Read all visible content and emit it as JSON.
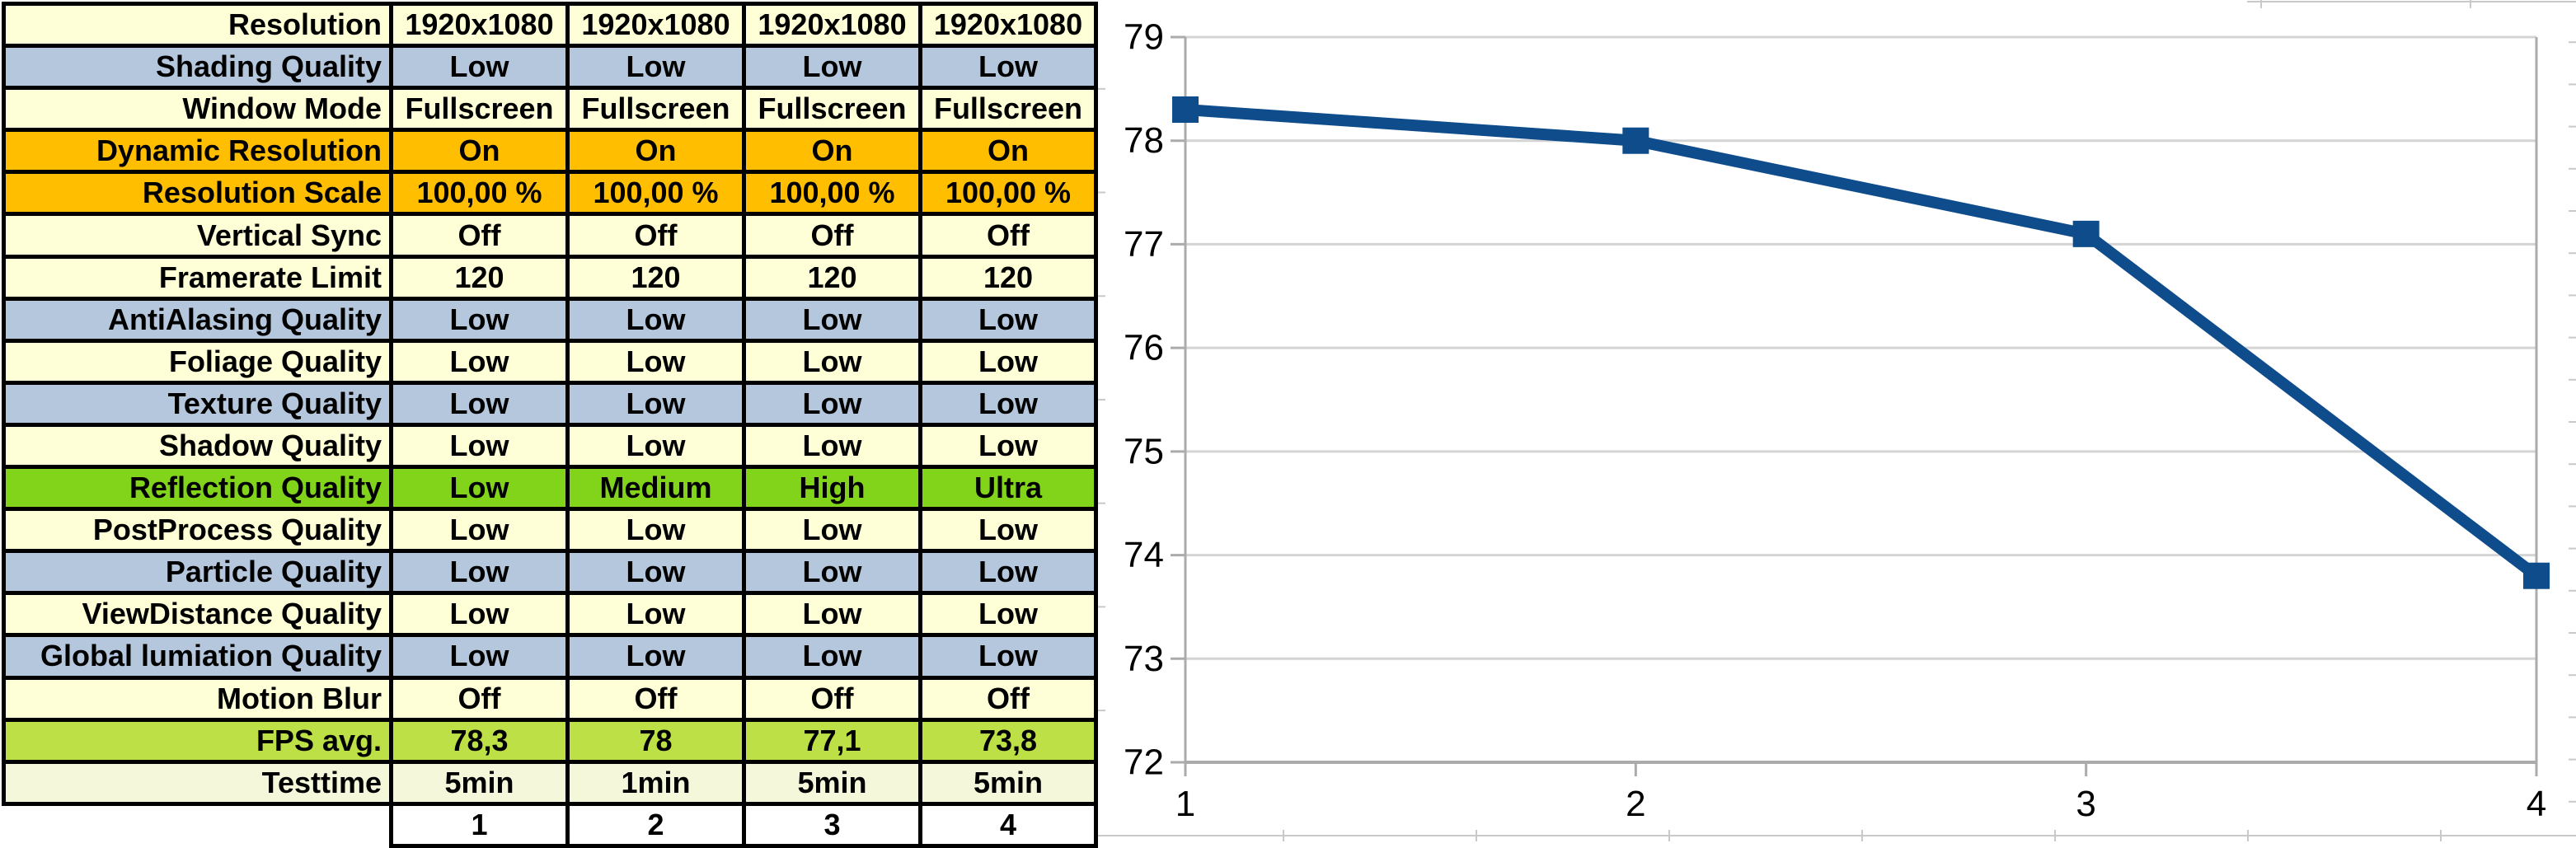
{
  "colors": {
    "yellow": "#FFFFD7",
    "blue": "#B4C7DC",
    "orange": "#FFBF00",
    "green": "#81D41A",
    "yellowgreen": "#BCE046",
    "palegreen": "#F4F7DA",
    "white": "#FFFFFF",
    "table_border": "#000000",
    "grid_major": "#D4D4D4",
    "axis": "#ABABAB",
    "sheet_line": "#C9C9C9",
    "series_blue": "#0E4C8C"
  },
  "table": {
    "rows": [
      {
        "label": "Resolution",
        "values": [
          "1920x1080",
          "1920x1080",
          "1920x1080",
          "1920x1080"
        ],
        "color": "yellow"
      },
      {
        "label": "Shading Quality",
        "values": [
          "Low",
          "Low",
          "Low",
          "Low"
        ],
        "color": "blue"
      },
      {
        "label": "Window Mode",
        "values": [
          "Fullscreen",
          "Fullscreen",
          "Fullscreen",
          "Fullscreen"
        ],
        "color": "yellow"
      },
      {
        "label": "Dynamic Resolution",
        "values": [
          "On",
          "On",
          "On",
          "On"
        ],
        "color": "orange"
      },
      {
        "label": "Resolution Scale",
        "values": [
          "100,00 %",
          "100,00 %",
          "100,00 %",
          "100,00 %"
        ],
        "color": "orange"
      },
      {
        "label": "Vertical Sync",
        "values": [
          "Off",
          "Off",
          "Off",
          "Off"
        ],
        "color": "yellow"
      },
      {
        "label": "Framerate Limit",
        "values": [
          "120",
          "120",
          "120",
          "120"
        ],
        "color": "yellow"
      },
      {
        "label": "AntiAlasing Quality",
        "values": [
          "Low",
          "Low",
          "Low",
          "Low"
        ],
        "color": "blue"
      },
      {
        "label": "Foliage Quality",
        "values": [
          "Low",
          "Low",
          "Low",
          "Low"
        ],
        "color": "yellow"
      },
      {
        "label": "Texture Quality",
        "values": [
          "Low",
          "Low",
          "Low",
          "Low"
        ],
        "color": "blue"
      },
      {
        "label": "Shadow Quality",
        "values": [
          "Low",
          "Low",
          "Low",
          "Low"
        ],
        "color": "yellow"
      },
      {
        "label": "Reflection Quality",
        "values": [
          "Low",
          "Medium",
          "High",
          "Ultra"
        ],
        "color": "green"
      },
      {
        "label": "PostProcess Quality",
        "values": [
          "Low",
          "Low",
          "Low",
          "Low"
        ],
        "color": "yellow"
      },
      {
        "label": "Particle Quality",
        "values": [
          "Low",
          "Low",
          "Low",
          "Low"
        ],
        "color": "blue"
      },
      {
        "label": "ViewDistance Quality",
        "values": [
          "Low",
          "Low",
          "Low",
          "Low"
        ],
        "color": "yellow"
      },
      {
        "label": "Global lumiation Quality",
        "values": [
          "Low",
          "Low",
          "Low",
          "Low"
        ],
        "color": "blue"
      },
      {
        "label": "Motion Blur",
        "values": [
          "Off",
          "Off",
          "Off",
          "Off"
        ],
        "color": "yellow"
      },
      {
        "label": "FPS avg.",
        "values": [
          "78,3",
          "78",
          "77,1",
          "73,8"
        ],
        "color": "yellowgreen"
      },
      {
        "label": "Testtime",
        "values": [
          "5min",
          "1min",
          "5min",
          "5min"
        ],
        "color": "palegreen"
      },
      {
        "label": "",
        "values": [
          "1",
          "2",
          "3",
          "4"
        ],
        "color": "white",
        "empty_label": true
      }
    ]
  },
  "chart_data": {
    "type": "line",
    "x": [
      1,
      2,
      3,
      4
    ],
    "x_labels": [
      "1",
      "2",
      "3",
      "4"
    ],
    "series": [
      {
        "name": "FPS avg.",
        "values": [
          78.3,
          78,
          77.1,
          73.8
        ],
        "color": "#0E4C8C",
        "marker": "square"
      }
    ],
    "yticks": [
      79,
      78,
      77,
      76,
      75,
      74,
      73,
      72
    ],
    "ylim": [
      72,
      79
    ],
    "xlim": [
      1,
      4
    ],
    "title": "",
    "xlabel": "",
    "ylabel": "",
    "grid": "horizontal",
    "legend": "none"
  }
}
